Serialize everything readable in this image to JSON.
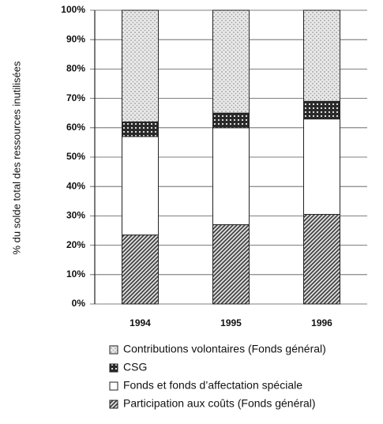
{
  "chart_data": {
    "type": "stacked_bar",
    "y_label": "% du solde total des ressources inutilisées",
    "categories": [
      "1994",
      "1995",
      "1996"
    ],
    "series": [
      {
        "name": "Participation aux coûts (Fonds général)",
        "color": "#3a3a3a",
        "values": [
          23.5,
          27,
          30.5
        ]
      },
      {
        "name": "Fonds et fonds d’affectation spéciale",
        "color": "#ffffff",
        "values": [
          33.5,
          33,
          32.5
        ]
      },
      {
        "name": "CSG",
        "color": "#2a2a2a",
        "values": [
          5,
          5,
          6
        ]
      },
      {
        "name": "Contributions volontaires (Fonds général)",
        "color": "#9a9a9a",
        "values": [
          38,
          35,
          31
        ]
      }
    ],
    "ylim": [
      0,
      100
    ],
    "yticks": [
      {
        "value": 0,
        "label": "0%"
      },
      {
        "value": 10,
        "label": "10%"
      },
      {
        "value": 20,
        "label": "20%"
      },
      {
        "value": 30,
        "label": "30%"
      },
      {
        "value": 40,
        "label": "40%"
      },
      {
        "value": 50,
        "label": "50%"
      },
      {
        "value": 60,
        "label": "60%"
      },
      {
        "value": 70,
        "label": "70%"
      },
      {
        "value": 80,
        "label": "80%"
      },
      {
        "value": 90,
        "label": "90%"
      },
      {
        "value": 100,
        "label": "100%"
      }
    ],
    "grid": true
  }
}
